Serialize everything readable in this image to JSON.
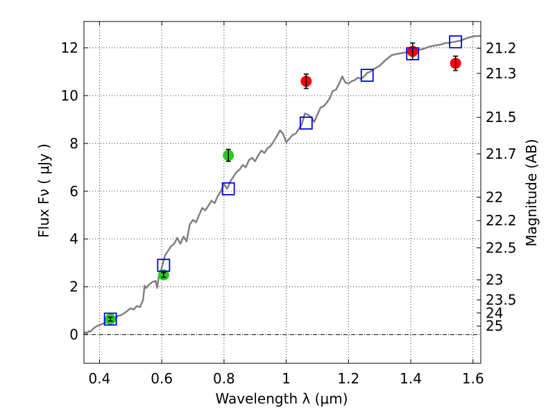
{
  "chart_data": {
    "type": "scatter",
    "title": "",
    "xlabel": "Wavelength  λ (μm)",
    "ylabel": "Flux  Fν  ( μJy )",
    "y2label": "Magnitude (AB)",
    "xlim": [
      0.35,
      1.625
    ],
    "ylim": [
      -1.2,
      13.1
    ],
    "grid": true,
    "x_ticks": [
      0.4,
      0.6,
      0.8,
      1.0,
      1.2,
      1.4,
      1.6
    ],
    "x_tick_labels": [
      "0.4",
      "0.6",
      "0.8",
      "1",
      "1.2",
      "1.4",
      "1.6"
    ],
    "y_ticks": [
      0,
      2,
      4,
      6,
      8,
      10,
      12
    ],
    "y_tick_labels": [
      "0",
      "2",
      "4",
      "6",
      "8",
      "10",
      "12"
    ],
    "mag_ticks": [
      {
        "label": "21.2",
        "flux": 11.98
      },
      {
        "label": "21.3",
        "flux": 10.93
      },
      {
        "label": "21.5",
        "flux": 9.09
      },
      {
        "label": "21.7",
        "flux": 7.56
      },
      {
        "label": "22",
        "flux": 5.75
      },
      {
        "label": "22.2",
        "flux": 4.77
      },
      {
        "label": "22.5",
        "flux": 3.63
      },
      {
        "label": "23",
        "flux": 2.29
      },
      {
        "label": "23.5",
        "flux": 1.45
      },
      {
        "label": "24",
        "flux": 0.91
      },
      {
        "label": "25",
        "flux": 0.36
      }
    ],
    "series": [
      {
        "kind": "model_spectrum",
        "color": "#808080",
        "points": [
          [
            0.35,
            0.02
          ],
          [
            0.355,
            0.1
          ],
          [
            0.36,
            0.05
          ],
          [
            0.365,
            0.15
          ],
          [
            0.37,
            0.12
          ],
          [
            0.38,
            0.25
          ],
          [
            0.39,
            0.35
          ],
          [
            0.4,
            0.4
          ],
          [
            0.41,
            0.45
          ],
          [
            0.42,
            0.5
          ],
          [
            0.43,
            0.58
          ],
          [
            0.44,
            0.62
          ],
          [
            0.45,
            0.7
          ],
          [
            0.46,
            0.78
          ],
          [
            0.47,
            0.82
          ],
          [
            0.48,
            0.9
          ],
          [
            0.49,
            1.0
          ],
          [
            0.5,
            1.1
          ],
          [
            0.51,
            1.05
          ],
          [
            0.52,
            1.2
          ],
          [
            0.53,
            1.15
          ],
          [
            0.54,
            1.45
          ],
          [
            0.545,
            2.05
          ],
          [
            0.55,
            1.95
          ],
          [
            0.56,
            2.1
          ],
          [
            0.57,
            2.2
          ],
          [
            0.58,
            2.25
          ],
          [
            0.585,
            1.95
          ],
          [
            0.59,
            2.4
          ],
          [
            0.6,
            2.8
          ],
          [
            0.61,
            3.3
          ],
          [
            0.62,
            3.5
          ],
          [
            0.63,
            3.7
          ],
          [
            0.64,
            3.8
          ],
          [
            0.65,
            4.05
          ],
          [
            0.66,
            3.8
          ],
          [
            0.67,
            4.1
          ],
          [
            0.68,
            3.9
          ],
          [
            0.69,
            4.6
          ],
          [
            0.7,
            4.8
          ],
          [
            0.71,
            4.7
          ],
          [
            0.72,
            5.0
          ],
          [
            0.73,
            5.3
          ],
          [
            0.74,
            5.2
          ],
          [
            0.75,
            5.4
          ],
          [
            0.76,
            5.6
          ],
          [
            0.77,
            5.5
          ],
          [
            0.78,
            5.8
          ],
          [
            0.79,
            6.0
          ],
          [
            0.8,
            6.3
          ],
          [
            0.81,
            6.1
          ],
          [
            0.82,
            6.4
          ],
          [
            0.83,
            6.6
          ],
          [
            0.84,
            6.8
          ],
          [
            0.85,
            6.9
          ],
          [
            0.86,
            7.1
          ],
          [
            0.87,
            7.0
          ],
          [
            0.88,
            7.3
          ],
          [
            0.89,
            7.4
          ],
          [
            0.9,
            7.25
          ],
          [
            0.91,
            7.5
          ],
          [
            0.92,
            7.7
          ],
          [
            0.93,
            7.6
          ],
          [
            0.94,
            7.8
          ],
          [
            0.95,
            7.9
          ],
          [
            0.96,
            8.1
          ],
          [
            0.97,
            8.3
          ],
          [
            0.98,
            8.55
          ],
          [
            0.99,
            8.4
          ],
          [
            1.0,
            8.05
          ],
          [
            1.01,
            8.2
          ],
          [
            1.02,
            8.35
          ],
          [
            1.03,
            8.4
          ],
          [
            1.04,
            8.6
          ],
          [
            1.05,
            8.8
          ],
          [
            1.06,
            9.25
          ],
          [
            1.07,
            9.2
          ],
          [
            1.08,
            9.1
          ],
          [
            1.09,
            8.9
          ],
          [
            1.1,
            9.2
          ],
          [
            1.11,
            9.5
          ],
          [
            1.12,
            9.55
          ],
          [
            1.13,
            9.7
          ],
          [
            1.14,
            9.9
          ],
          [
            1.15,
            10.2
          ],
          [
            1.16,
            10.25
          ],
          [
            1.17,
            10.5
          ],
          [
            1.18,
            10.8
          ],
          [
            1.19,
            10.55
          ],
          [
            1.2,
            10.5
          ],
          [
            1.21,
            10.6
          ],
          [
            1.22,
            10.65
          ],
          [
            1.23,
            10.75
          ],
          [
            1.24,
            10.7
          ],
          [
            1.25,
            10.8
          ],
          [
            1.26,
            10.95
          ],
          [
            1.27,
            11.0
          ],
          [
            1.28,
            11.1
          ],
          [
            1.3,
            11.25
          ],
          [
            1.32,
            11.5
          ],
          [
            1.34,
            11.7
          ],
          [
            1.36,
            11.75
          ],
          [
            1.38,
            11.8
          ],
          [
            1.4,
            11.85
          ],
          [
            1.42,
            11.9
          ],
          [
            1.44,
            11.95
          ],
          [
            1.46,
            12.05
          ],
          [
            1.48,
            12.1
          ],
          [
            1.5,
            12.15
          ],
          [
            1.51,
            12.2
          ],
          [
            1.52,
            12.2
          ],
          [
            1.54,
            12.25
          ],
          [
            1.56,
            12.3
          ],
          [
            1.58,
            12.4
          ],
          [
            1.6,
            12.48
          ],
          [
            1.625,
            12.5
          ]
        ]
      },
      {
        "kind": "observed",
        "color": "#22cc22",
        "points": [
          {
            "x": 0.435,
            "y": 0.65,
            "err": 0.08
          },
          {
            "x": 0.606,
            "y": 2.5,
            "err": 0.1
          },
          {
            "x": 0.814,
            "y": 7.5,
            "err": 0.25
          }
        ]
      },
      {
        "kind": "observed",
        "color": "#ff0000",
        "points": [
          {
            "x": 1.064,
            "y": 10.6,
            "err": 0.3
          },
          {
            "x": 1.406,
            "y": 11.85,
            "err": 0.35
          },
          {
            "x": 1.544,
            "y": 11.35,
            "err": 0.3
          }
        ]
      },
      {
        "kind": "model_photometry",
        "color": "#0000ee",
        "points": [
          {
            "x": 0.435,
            "y": 0.65
          },
          {
            "x": 0.606,
            "y": 2.9
          },
          {
            "x": 0.814,
            "y": 6.1
          },
          {
            "x": 1.064,
            "y": 8.85
          },
          {
            "x": 1.26,
            "y": 10.85
          },
          {
            "x": 1.406,
            "y": 11.75
          },
          {
            "x": 1.544,
            "y": 12.25
          }
        ]
      }
    ]
  }
}
